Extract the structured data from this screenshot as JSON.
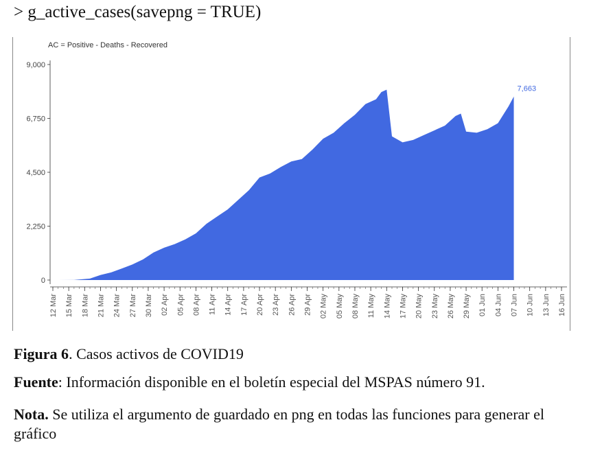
{
  "code_line": "> g_active_cases(savepng = TRUE)",
  "chart_data": {
    "type": "area",
    "subtitle": "AC = Positive - Deaths - Recovered",
    "title": "",
    "xlabel": "",
    "ylabel": "",
    "ylim": [
      0,
      9000
    ],
    "y_ticks": [
      "0",
      "2,250",
      "4,500",
      "6,750",
      "9,000"
    ],
    "y_tick_values": [
      0,
      2250,
      4500,
      6750,
      9000
    ],
    "x_tick_labels": [
      "12 Mar",
      "15 Mar",
      "18 Mar",
      "21 Mar",
      "24 Mar",
      "27 Mar",
      "30 Mar",
      "02 Apr",
      "05 Apr",
      "08 Apr",
      "11 Apr",
      "14 Apr",
      "17 Apr",
      "20 Apr",
      "23 Apr",
      "26 Apr",
      "29 Apr",
      "02 May",
      "05 May",
      "08 May",
      "11 May",
      "14 May",
      "17 May",
      "20 May",
      "23 May",
      "26 May",
      "29 May",
      "01 Jun",
      "04 Jun",
      "07 Jun",
      "10 Jun",
      "13 Jun",
      "16 Jun"
    ],
    "fill_color": "#4169E1",
    "label_color": "#4169E1",
    "last_value_label": "7,663",
    "grid": false,
    "series": [
      {
        "x": [
          "2020-03-13",
          "2020-03-16",
          "2020-03-19",
          "2020-03-21",
          "2020-03-23",
          "2020-03-25",
          "2020-03-27",
          "2020-03-29",
          "2020-03-31",
          "2020-04-02",
          "2020-04-04",
          "2020-04-06",
          "2020-04-08",
          "2020-04-10",
          "2020-04-12",
          "2020-04-14",
          "2020-04-16",
          "2020-04-18",
          "2020-04-20",
          "2020-04-22",
          "2020-04-24",
          "2020-04-26",
          "2020-04-28",
          "2020-04-30",
          "2020-05-02",
          "2020-05-04",
          "2020-05-06",
          "2020-05-08",
          "2020-05-10",
          "2020-05-12",
          "2020-05-13",
          "2020-05-14",
          "2020-05-15",
          "2020-05-17",
          "2020-05-19",
          "2020-05-21",
          "2020-05-23",
          "2020-05-25",
          "2020-05-27",
          "2020-05-28",
          "2020-05-29",
          "2020-05-31",
          "2020-06-02",
          "2020-06-04",
          "2020-06-06",
          "2020-06-07"
        ],
        "y": [
          1,
          5,
          60,
          210,
          320,
          480,
          650,
          860,
          1150,
          1350,
          1500,
          1700,
          1950,
          2350,
          2650,
          2950,
          3350,
          3750,
          4280,
          4450,
          4720,
          4950,
          5050,
          5450,
          5900,
          6150,
          6550,
          6900,
          7350,
          7550,
          7850,
          7950,
          6000,
          5750,
          5850,
          6050,
          6250,
          6450,
          6850,
          6950,
          6200,
          6150,
          6300,
          6550,
          7250,
          7663
        ]
      }
    ]
  },
  "captions": {
    "figure_label": "Figura 6",
    "figure_text": ". Casos activos de COVID19",
    "source_label": "Fuente",
    "source_text": ": Información disponible en el boletín especial del MSPAS número 91.",
    "note_label": "Nota.",
    "note_text": " Se utiliza el argumento de guardado en png en todas las funciones para generar el gráfico"
  }
}
